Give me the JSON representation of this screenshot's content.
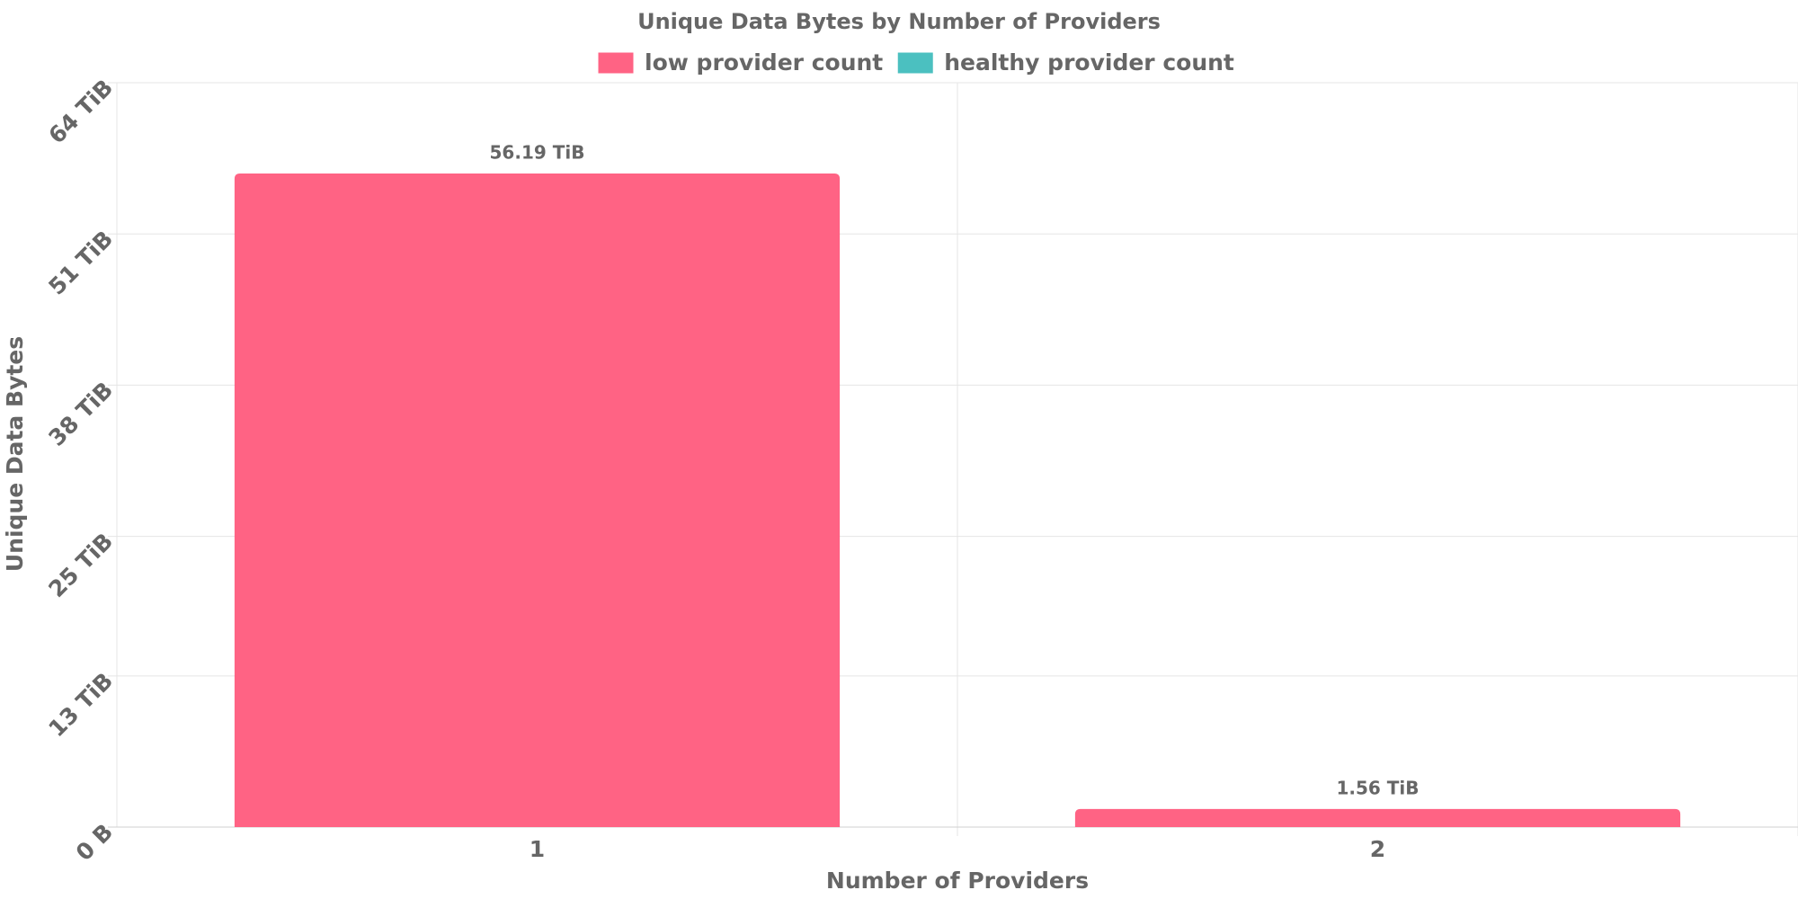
{
  "chart_data": {
    "type": "bar",
    "title": "Unique Data Bytes by Number of Providers",
    "x_label": "Number of Providers",
    "y_label": "Unique Data Bytes",
    "categories": [
      "1",
      "2"
    ],
    "series": [
      {
        "name": "low provider count",
        "color": "#ff6384",
        "values": [
          56.19,
          1.56
        ],
        "value_labels": [
          "56.19 TiB",
          "1.56 TiB"
        ]
      },
      {
        "name": "healthy provider count",
        "color": "#4bc0c0",
        "values": [
          null,
          null
        ]
      }
    ],
    "ylim": [
      0,
      64
    ],
    "yticks": [
      {
        "value": 0,
        "label": "0 B"
      },
      {
        "value": 13,
        "label": "13 TiB"
      },
      {
        "value": 25,
        "label": "25 TiB"
      },
      {
        "value": 38,
        "label": "38 TiB"
      },
      {
        "value": 51,
        "label": "51 TiB"
      },
      {
        "value": 64,
        "label": "64 TiB"
      }
    ],
    "grid": true,
    "legend": "top"
  }
}
